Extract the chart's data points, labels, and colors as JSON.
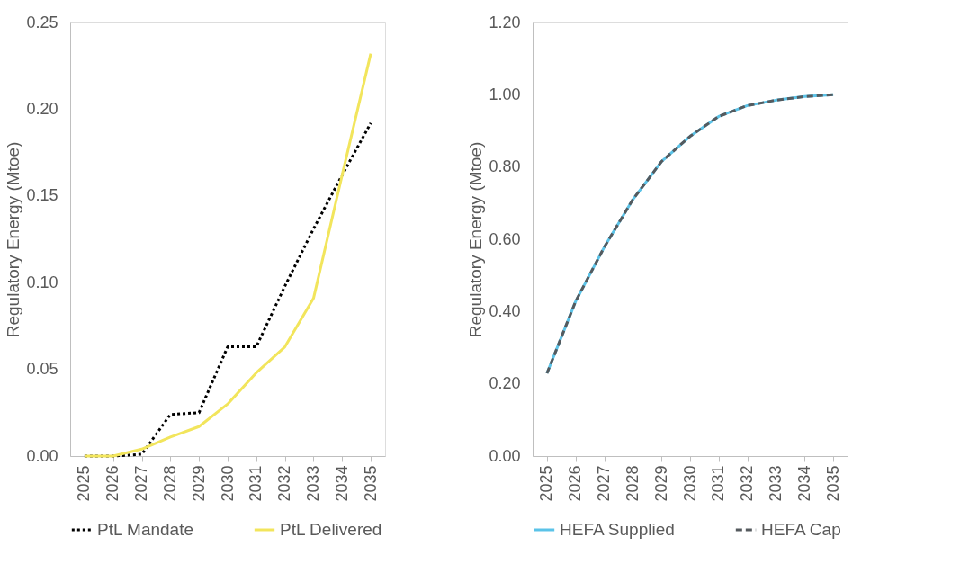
{
  "chart_data": [
    {
      "type": "line",
      "ylabel": "Regulatory Energy (Mtoe)",
      "categories": [
        "2025",
        "2026",
        "2027",
        "2028",
        "2029",
        "2030",
        "2031",
        "2032",
        "2033",
        "2034",
        "2035"
      ],
      "ylim": [
        0,
        0.25
      ],
      "yticks": [
        {
          "value": 0,
          "label": "0.00"
        },
        {
          "value": 0.05,
          "label": "0.05"
        },
        {
          "value": 0.1,
          "label": "0.10"
        },
        {
          "value": 0.15,
          "label": "0.15"
        },
        {
          "value": 0.2,
          "label": "0.20"
        },
        {
          "value": 0.25,
          "label": "0.25"
        }
      ],
      "grid": false,
      "legend": "bottom",
      "marker": "none",
      "series": [
        {
          "name": "PtL Mandate",
          "color": "#000000",
          "line_style": "dotted",
          "values": [
            0,
            0,
            0.001,
            0.024,
            0.025,
            0.063,
            0.063,
            0.098,
            0.131,
            0.162,
            0.192
          ]
        },
        {
          "name": "PtL Delivered",
          "color": "#f2e55c",
          "line_style": "solid",
          "values": [
            0,
            0,
            0.004,
            0.011,
            0.017,
            0.03,
            0.048,
            0.063,
            0.091,
            0.162,
            0.232
          ]
        }
      ]
    },
    {
      "type": "line",
      "ylabel": "Regulatory Energy (Mtoe)",
      "categories": [
        "2025",
        "2026",
        "2027",
        "2028",
        "2029",
        "2030",
        "2031",
        "2032",
        "2033",
        "2034",
        "2035"
      ],
      "ylim": [
        0,
        1.2
      ],
      "yticks": [
        {
          "value": 0,
          "label": "0.00"
        },
        {
          "value": 0.2,
          "label": "0.20"
        },
        {
          "value": 0.4,
          "label": "0.40"
        },
        {
          "value": 0.6,
          "label": "0.60"
        },
        {
          "value": 0.8,
          "label": "0.80"
        },
        {
          "value": 1.0,
          "label": "1.00"
        },
        {
          "value": 1.2,
          "label": "1.20"
        }
      ],
      "grid": false,
      "legend": "bottom",
      "marker": "none",
      "series": [
        {
          "name": "HEFA Supplied",
          "color": "#5bc3e8",
          "line_style": "solid",
          "values": [
            0.229,
            0.428,
            0.578,
            0.71,
            0.815,
            0.885,
            0.94,
            0.97,
            0.985,
            0.995,
            1.0
          ]
        },
        {
          "name": "HEFA Cap",
          "color": "#555a5e",
          "line_style": "dashed",
          "values": [
            0.229,
            0.428,
            0.578,
            0.71,
            0.815,
            0.885,
            0.94,
            0.97,
            0.985,
            0.995,
            1.0
          ]
        }
      ]
    }
  ]
}
